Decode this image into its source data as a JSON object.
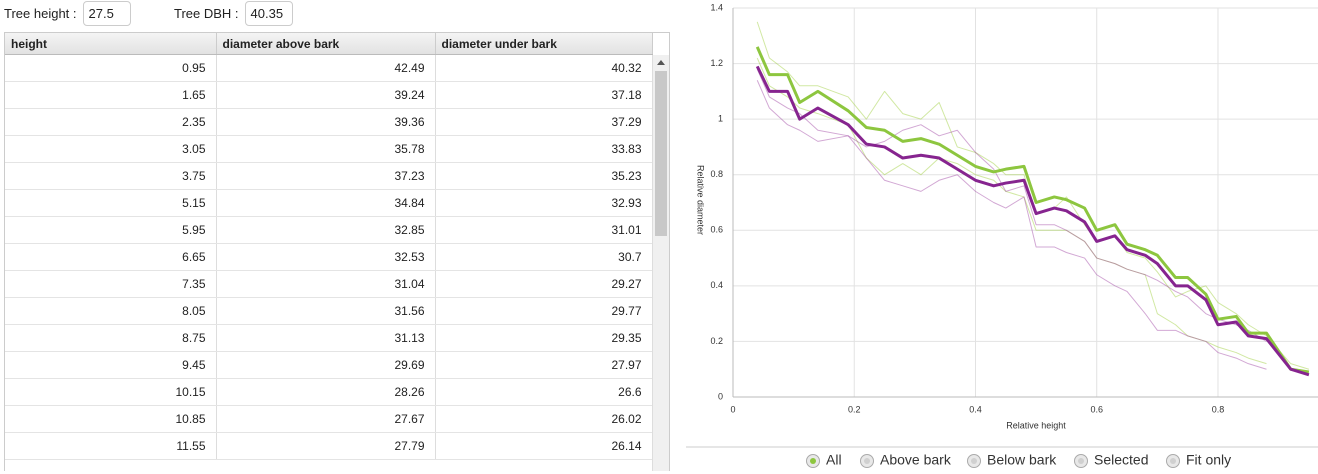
{
  "inputs": [
    {
      "label": "Tree height :",
      "value": "27.5"
    },
    {
      "label": "Tree DBH :",
      "value": "40.35"
    }
  ],
  "table": {
    "columns": [
      "height",
      "diameter above bark",
      "diameter under bark"
    ],
    "rows": [
      [
        0.95,
        42.49,
        40.32
      ],
      [
        1.65,
        39.24,
        37.18
      ],
      [
        2.35,
        39.36,
        37.29
      ],
      [
        3.05,
        35.78,
        33.83
      ],
      [
        3.75,
        37.23,
        35.23
      ],
      [
        5.15,
        34.84,
        32.93
      ],
      [
        5.95,
        32.85,
        31.01
      ],
      [
        6.65,
        32.53,
        30.7
      ],
      [
        7.35,
        31.04,
        29.27
      ],
      [
        8.05,
        31.56,
        29.77
      ],
      [
        8.75,
        31.13,
        29.35
      ],
      [
        9.45,
        29.69,
        27.97
      ],
      [
        10.15,
        28.26,
        26.6
      ],
      [
        10.85,
        27.67,
        26.02
      ],
      [
        11.55,
        27.79,
        26.14
      ]
    ]
  },
  "chart": {
    "x_label": "Relative height",
    "y_label": "Relative diameter",
    "xlim": [
      0,
      0.965
    ],
    "ylim": [
      0,
      1.4
    ],
    "xticks": [
      0,
      0.2,
      0.4,
      0.6,
      0.8
    ],
    "yticks": [
      0,
      0.2,
      0.4,
      0.6,
      0.8,
      1,
      1.2,
      1.4
    ],
    "grid": true,
    "x": [
      0.04,
      0.06,
      0.09,
      0.11,
      0.14,
      0.19,
      0.22,
      0.25,
      0.28,
      0.31,
      0.34,
      0.37,
      0.4,
      0.43,
      0.45,
      0.48,
      0.5,
      0.53,
      0.55,
      0.58,
      0.6,
      0.63,
      0.65,
      0.68,
      0.7,
      0.73,
      0.75,
      0.78,
      0.8,
      0.83,
      0.85,
      0.88,
      0.92,
      0.95
    ],
    "tree_series": [
      {
        "color": "#9acd32",
        "values": [
          1.35,
          1.22,
          1.17,
          1.12,
          1.12,
          1.08,
          1.0,
          1.1,
          1.02,
          1.0,
          1.06,
          0.9,
          0.88,
          0.84,
          0.8,
          0.8,
          0.66,
          0.68,
          0.72,
          0.62,
          0.56,
          0.58,
          0.52,
          0.5,
          0.45,
          0.36,
          0.38,
          0.4,
          0.34,
          0.3,
          0.26,
          0.22,
          0.12,
          0.1
        ]
      },
      {
        "color": "#9acd32",
        "values": [
          1.22,
          1.12,
          1.08,
          1.04,
          1.02,
          0.98,
          0.86,
          0.8,
          0.84,
          0.8,
          0.86,
          0.84,
          0.8,
          0.78,
          0.74,
          0.72,
          0.6,
          0.6,
          0.6,
          0.56,
          0.5,
          0.48,
          0.46,
          0.44,
          0.3,
          0.26,
          0.22,
          0.2,
          0.18,
          0.16,
          0.14,
          0.12,
          null,
          null
        ]
      },
      {
        "color": "#9b3ea0",
        "values": [
          1.14,
          1.04,
          0.98,
          0.96,
          0.92,
          0.94,
          0.86,
          0.78,
          0.76,
          0.74,
          0.78,
          0.8,
          0.74,
          0.7,
          0.68,
          0.72,
          0.54,
          0.54,
          0.52,
          0.5,
          0.44,
          0.4,
          0.38,
          0.3,
          0.24,
          0.24,
          0.22,
          0.2,
          0.16,
          0.14,
          0.12,
          0.1,
          null,
          null
        ]
      },
      {
        "color": "#9b3ea0",
        "values": [
          1.18,
          1.08,
          1.04,
          1.02,
          0.96,
          0.94,
          0.9,
          0.92,
          0.96,
          0.98,
          0.94,
          0.96,
          0.88,
          0.82,
          0.74,
          0.76,
          0.62,
          0.62,
          0.6,
          0.56,
          0.5,
          0.48,
          0.46,
          0.44,
          0.42,
          0.38,
          0.36,
          0.3,
          0.28,
          0.26,
          0.24,
          0.2,
          null,
          null
        ]
      }
    ],
    "mean_series": [
      {
        "color": "#8dc63f",
        "values": [
          1.26,
          1.16,
          1.16,
          1.06,
          1.1,
          1.03,
          0.97,
          0.96,
          0.92,
          0.93,
          0.91,
          0.87,
          0.83,
          0.81,
          0.82,
          0.83,
          0.7,
          0.72,
          0.71,
          0.68,
          0.6,
          0.62,
          0.55,
          0.53,
          0.51,
          0.43,
          0.43,
          0.37,
          0.28,
          0.29,
          0.23,
          0.23,
          0.1,
          0.09
        ]
      },
      {
        "color": "#86248f",
        "values": [
          1.19,
          1.1,
          1.1,
          1.0,
          1.04,
          0.98,
          0.91,
          0.9,
          0.86,
          0.87,
          0.86,
          0.82,
          0.78,
          0.76,
          0.77,
          0.78,
          0.66,
          0.68,
          0.67,
          0.63,
          0.56,
          0.58,
          0.53,
          0.51,
          0.48,
          0.4,
          0.4,
          0.35,
          0.26,
          0.27,
          0.22,
          0.21,
          0.1,
          0.08
        ]
      }
    ],
    "legend": [
      {
        "label": "All",
        "color": "#333333",
        "checked": true
      },
      {
        "label": "Above bark",
        "color": "#8dc63f",
        "checked": false
      },
      {
        "label": "Below bark",
        "color": "#86248f",
        "checked": false
      },
      {
        "label": "Selected",
        "color": "#333333",
        "checked": false
      },
      {
        "label": "Fit only",
        "color": "#333333",
        "checked": false
      }
    ]
  }
}
